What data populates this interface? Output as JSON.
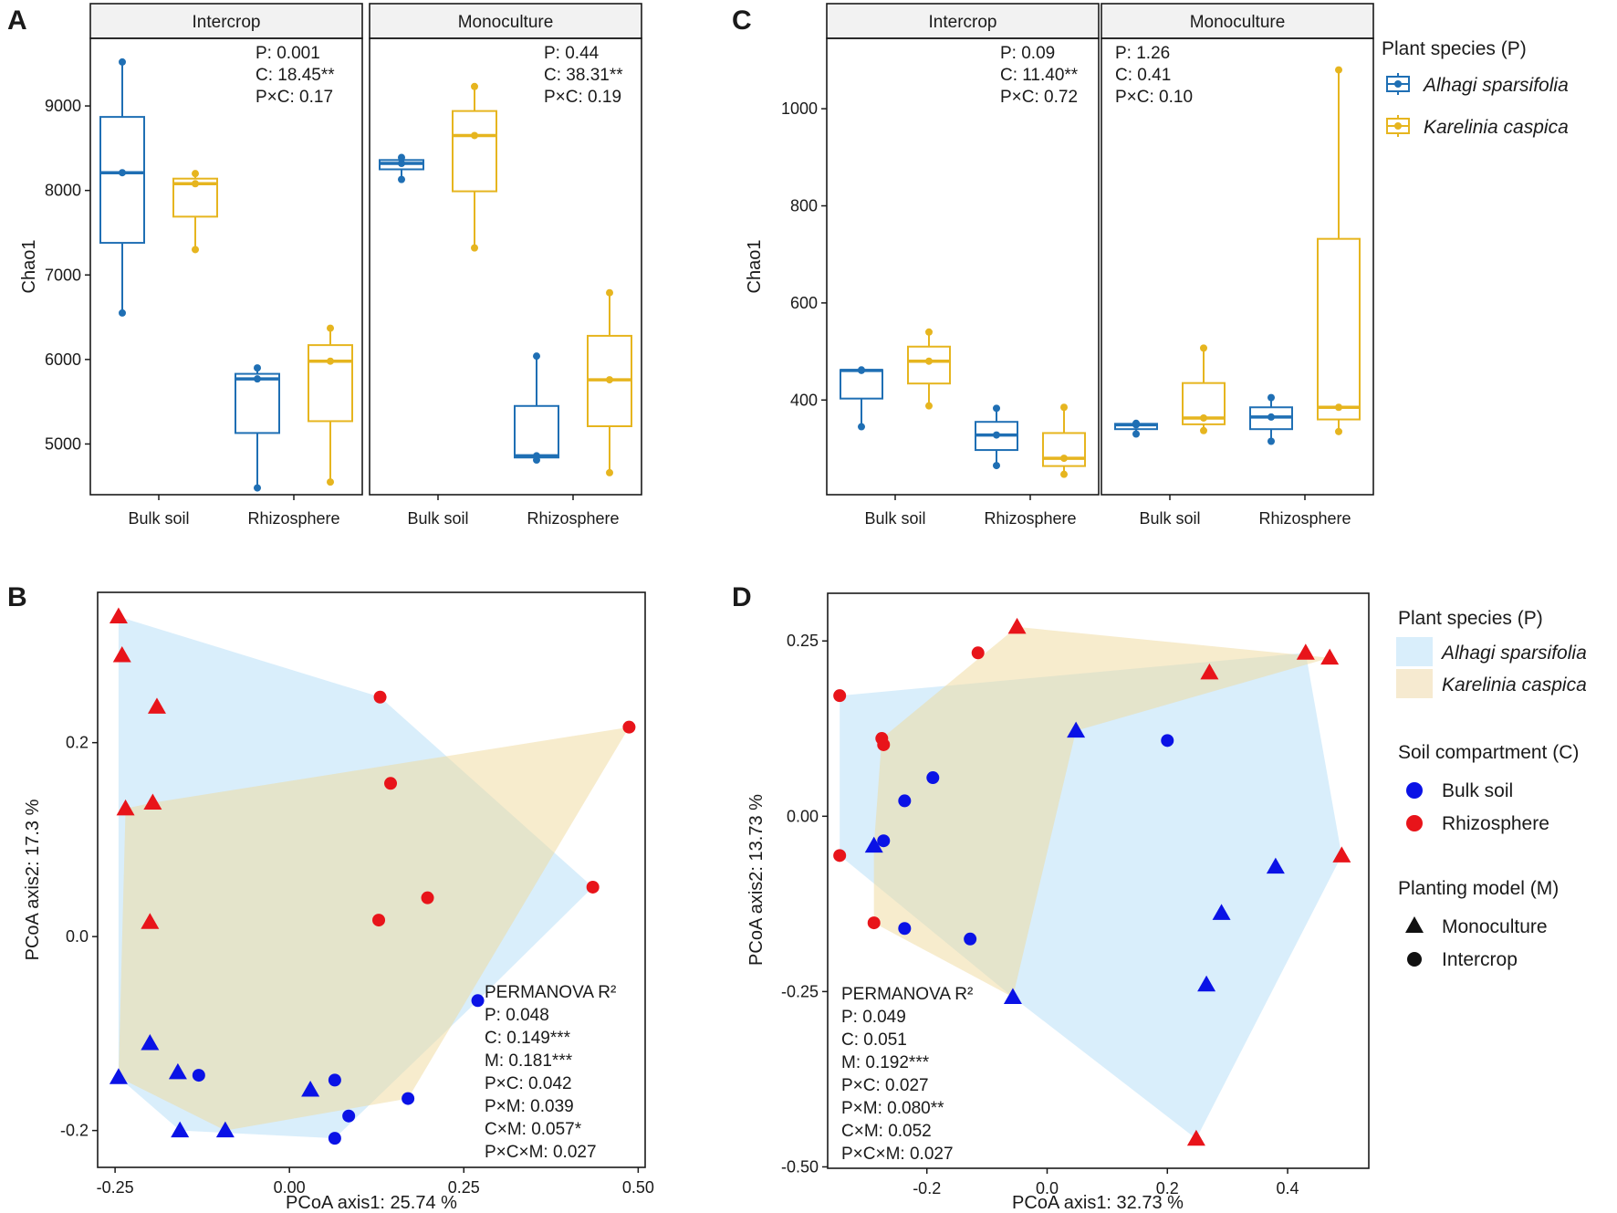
{
  "colors": {
    "alhagi": "#1f6fb4",
    "karelinia": "#e6b51f",
    "bulk": "#0a12e6",
    "rhizo": "#e8141a",
    "alhagi_fill": "#d9eefb",
    "karelinia_fill": "#f6ead0",
    "overlap_fill": "#dfe6cf"
  },
  "legends": {
    "top": {
      "title": "Plant species (P)",
      "items": [
        "Alhagi sparsifolia",
        "Karelinia caspica"
      ]
    },
    "bottom": {
      "species_title": "Plant species (P)",
      "species": [
        "Alhagi sparsifolia",
        "Karelinia caspica"
      ],
      "compartment_title": "Soil compartment (C)",
      "compartments": [
        "Bulk soil",
        "Rhizosphere"
      ],
      "model_title": "Planting model (M)",
      "models": [
        "Monoculture",
        "Intercrop"
      ]
    }
  },
  "chart_data": [
    {
      "panel": "A",
      "type": "box",
      "ylabel": "Chao1",
      "ylim": [
        4400,
        9800
      ],
      "yticks": [
        5000,
        6000,
        7000,
        8000,
        9000
      ],
      "categories": [
        "Bulk soil",
        "Rhizosphere"
      ],
      "facets": [
        {
          "name": "Intercrop",
          "stats": [
            "P: 0.001",
            "C: 18.45**",
            "P×C: 0.17"
          ],
          "boxes": [
            {
              "cat": "Bulk soil",
              "species": "Alhagi sparsifolia",
              "min": 6550,
              "q1": 7380,
              "median": 8210,
              "q3": 8870,
              "max": 9520,
              "points": [
                6550,
                8210,
                9520
              ]
            },
            {
              "cat": "Bulk soil",
              "species": "Karelinia caspica",
              "min": 7300,
              "q1": 7690,
              "median": 8080,
              "q3": 8140,
              "max": 8200,
              "points": [
                7300,
                8080,
                8200
              ]
            },
            {
              "cat": "Rhizosphere",
              "species": "Alhagi sparsifolia",
              "min": 4480,
              "q1": 5130,
              "median": 5770,
              "q3": 5830,
              "max": 5900,
              "points": [
                4480,
                5770,
                5900
              ]
            },
            {
              "cat": "Rhizosphere",
              "species": "Karelinia caspica",
              "min": 4550,
              "q1": 5270,
              "median": 5980,
              "q3": 6170,
              "max": 6370,
              "points": [
                4550,
                5980,
                6370
              ]
            }
          ]
        },
        {
          "name": "Monoculture",
          "stats": [
            "P: 0.44",
            "C: 38.31**",
            "P×C: 0.19"
          ],
          "boxes": [
            {
              "cat": "Bulk soil",
              "species": "Alhagi sparsifolia",
              "min": 8130,
              "q1": 8250,
              "median": 8320,
              "q3": 8360,
              "max": 8390,
              "points": [
                8130,
                8320,
                8390
              ]
            },
            {
              "cat": "Bulk soil",
              "species": "Karelinia caspica",
              "min": 7320,
              "q1": 7990,
              "median": 8650,
              "q3": 8940,
              "max": 9230,
              "points": [
                7320,
                8650,
                9230
              ]
            },
            {
              "cat": "Rhizosphere",
              "species": "Alhagi sparsifolia",
              "min": 4810,
              "q1": 4840,
              "median": 4860,
              "q3": 5450,
              "max": 6040,
              "points": [
                4810,
                4860,
                6040
              ]
            },
            {
              "cat": "Rhizosphere",
              "species": "Karelinia caspica",
              "min": 4660,
              "q1": 5210,
              "median": 5760,
              "q3": 6280,
              "max": 6790,
              "points": [
                4660,
                5760,
                6790
              ]
            }
          ]
        }
      ]
    },
    {
      "panel": "C",
      "type": "box",
      "ylabel": "Chao1",
      "ylim": [
        205,
        1145
      ],
      "yticks": [
        400,
        600,
        800,
        1000
      ],
      "categories": [
        "Bulk soil",
        "Rhizosphere"
      ],
      "facets": [
        {
          "name": "Intercrop",
          "stats": [
            "P: 0.09",
            "C: 11.40**",
            "P×C: 0.72"
          ],
          "boxes": [
            {
              "cat": "Bulk soil",
              "species": "Alhagi sparsifolia",
              "min": 345,
              "q1": 403,
              "median": 461,
              "q3": 462,
              "max": 462,
              "points": [
                345,
                461,
                462
              ]
            },
            {
              "cat": "Bulk soil",
              "species": "Karelinia caspica",
              "min": 388,
              "q1": 434,
              "median": 480,
              "q3": 510,
              "max": 540,
              "points": [
                388,
                480,
                540
              ]
            },
            {
              "cat": "Rhizosphere",
              "species": "Alhagi sparsifolia",
              "min": 265,
              "q1": 297,
              "median": 328,
              "q3": 355,
              "max": 383,
              "points": [
                265,
                328,
                383
              ]
            },
            {
              "cat": "Rhizosphere",
              "species": "Karelinia caspica",
              "min": 247,
              "q1": 264,
              "median": 280,
              "q3": 332,
              "max": 385,
              "points": [
                247,
                280,
                385
              ]
            }
          ]
        },
        {
          "name": "Monoculture",
          "stats": [
            "P: 1.26",
            "C: 0.41",
            "P×C: 0.10"
          ],
          "boxes": [
            {
              "cat": "Bulk soil",
              "species": "Alhagi sparsifolia",
              "min": 330,
              "q1": 340,
              "median": 349,
              "q3": 351,
              "max": 352,
              "points": [
                330,
                349,
                352
              ]
            },
            {
              "cat": "Bulk soil",
              "species": "Karelinia caspica",
              "min": 337,
              "q1": 350,
              "median": 363,
              "q3": 435,
              "max": 507,
              "points": [
                337,
                363,
                507
              ]
            },
            {
              "cat": "Rhizosphere",
              "species": "Alhagi sparsifolia",
              "min": 315,
              "q1": 340,
              "median": 365,
              "q3": 385,
              "max": 405,
              "points": [
                315,
                365,
                405
              ]
            },
            {
              "cat": "Rhizosphere",
              "species": "Karelinia caspica",
              "min": 335,
              "q1": 360,
              "median": 385,
              "q3": 732,
              "max": 1080,
              "points": [
                335,
                385,
                1080
              ]
            }
          ]
        }
      ]
    },
    {
      "panel": "B",
      "type": "scatter",
      "xlabel": "PCoA axis1:  25.74 %",
      "ylabel": "PCoA axis2:  17.3 %",
      "xlim": [
        -0.275,
        0.51
      ],
      "ylim": [
        -0.238,
        0.355
      ],
      "xticks": [
        -0.25,
        0.0,
        0.25,
        0.5
      ],
      "yticks": [
        -0.2,
        0.0,
        0.2
      ],
      "xtick_labels": [
        "-0.25",
        "0.00",
        "0.25",
        "0.50"
      ],
      "ytick_labels": [
        "-0.2",
        "0.0",
        "0.2"
      ],
      "hulls": [
        {
          "species": "Alhagi sparsifolia",
          "polygon": [
            [
              -0.245,
              0.33
            ],
            [
              0.13,
              0.247
            ],
            [
              0.435,
              0.051
            ],
            [
              0.27,
              -0.066
            ],
            [
              0.065,
              -0.208
            ],
            [
              -0.157,
              -0.2
            ],
            [
              -0.245,
              -0.145
            ]
          ]
        },
        {
          "species": "Karelinia caspica",
          "polygon": [
            [
              -0.235,
              0.132
            ],
            [
              -0.196,
              0.138
            ],
            [
              0.487,
              0.216
            ],
            [
              0.17,
              -0.167
            ],
            [
              -0.092,
              -0.2
            ],
            [
              -0.245,
              -0.145
            ]
          ]
        }
      ],
      "points": [
        {
          "x": -0.245,
          "y": 0.33,
          "c": "Rhizosphere",
          "m": "Monoculture"
        },
        {
          "x": -0.24,
          "y": 0.29,
          "c": "Rhizosphere",
          "m": "Monoculture"
        },
        {
          "x": -0.19,
          "y": 0.237,
          "c": "Rhizosphere",
          "m": "Monoculture"
        },
        {
          "x": -0.196,
          "y": 0.138,
          "c": "Rhizosphere",
          "m": "Monoculture"
        },
        {
          "x": -0.235,
          "y": 0.132,
          "c": "Rhizosphere",
          "m": "Monoculture"
        },
        {
          "x": -0.2,
          "y": 0.015,
          "c": "Rhizosphere",
          "m": "Monoculture"
        },
        {
          "x": 0.13,
          "y": 0.247,
          "c": "Rhizosphere",
          "m": "Intercrop"
        },
        {
          "x": 0.145,
          "y": 0.158,
          "c": "Rhizosphere",
          "m": "Intercrop"
        },
        {
          "x": 0.487,
          "y": 0.216,
          "c": "Rhizosphere",
          "m": "Intercrop"
        },
        {
          "x": 0.435,
          "y": 0.051,
          "c": "Rhizosphere",
          "m": "Intercrop"
        },
        {
          "x": 0.198,
          "y": 0.04,
          "c": "Rhizosphere",
          "m": "Intercrop"
        },
        {
          "x": 0.128,
          "y": 0.017,
          "c": "Rhizosphere",
          "m": "Intercrop"
        },
        {
          "x": -0.2,
          "y": -0.11,
          "c": "Bulk soil",
          "m": "Monoculture"
        },
        {
          "x": -0.245,
          "y": -0.145,
          "c": "Bulk soil",
          "m": "Monoculture"
        },
        {
          "x": -0.16,
          "y": -0.14,
          "c": "Bulk soil",
          "m": "Monoculture"
        },
        {
          "x": -0.157,
          "y": -0.2,
          "c": "Bulk soil",
          "m": "Monoculture"
        },
        {
          "x": -0.092,
          "y": -0.2,
          "c": "Bulk soil",
          "m": "Monoculture"
        },
        {
          "x": 0.03,
          "y": -0.158,
          "c": "Bulk soil",
          "m": "Monoculture"
        },
        {
          "x": -0.13,
          "y": -0.143,
          "c": "Bulk soil",
          "m": "Intercrop"
        },
        {
          "x": 0.27,
          "y": -0.066,
          "c": "Bulk soil",
          "m": "Intercrop"
        },
        {
          "x": 0.065,
          "y": -0.148,
          "c": "Bulk soil",
          "m": "Intercrop"
        },
        {
          "x": 0.17,
          "y": -0.167,
          "c": "Bulk soil",
          "m": "Intercrop"
        },
        {
          "x": 0.085,
          "y": -0.185,
          "c": "Bulk soil",
          "m": "Intercrop"
        },
        {
          "x": 0.065,
          "y": -0.208,
          "c": "Bulk soil",
          "m": "Intercrop"
        }
      ],
      "annotation": [
        "PERMANOVA R²",
        "P: 0.048",
        "C: 0.149***",
        "M: 0.181***",
        "P×C: 0.042",
        "P×M: 0.039",
        "C×M: 0.057*",
        "P×C×M: 0.027"
      ]
    },
    {
      "panel": "D",
      "type": "scatter",
      "xlabel": "PCoA axis1:  32.73 %",
      "ylabel": "PCoA axis2:  13.73 %",
      "xlim": [
        -0.365,
        0.535
      ],
      "ylim": [
        -0.502,
        0.318
      ],
      "xticks": [
        -0.2,
        0.0,
        0.2,
        0.4
      ],
      "yticks": [
        -0.5,
        -0.25,
        0.0,
        0.25
      ],
      "xtick_labels": [
        "-0.2",
        "0.0",
        "0.2",
        "0.4"
      ],
      "ytick_labels": [
        "-0.50",
        "-0.25",
        "0.00",
        "0.25"
      ],
      "hulls": [
        {
          "species": "Alhagi sparsifolia",
          "polygon": [
            [
              -0.345,
              0.172
            ],
            [
              0.43,
              0.233
            ],
            [
              0.49,
              -0.056
            ],
            [
              0.248,
              -0.46
            ],
            [
              -0.057,
              -0.258
            ],
            [
              -0.345,
              -0.056
            ]
          ]
        },
        {
          "species": "Karelinia caspica",
          "polygon": [
            [
              -0.05,
              0.27
            ],
            [
              0.47,
              0.226
            ],
            [
              0.048,
              0.122
            ],
            [
              -0.057,
              -0.258
            ],
            [
              -0.288,
              -0.152
            ],
            [
              -0.288,
              -0.042
            ],
            [
              -0.275,
              0.111
            ]
          ]
        }
      ],
      "points": [
        {
          "x": -0.05,
          "y": 0.27,
          "c": "Rhizosphere",
          "m": "Monoculture"
        },
        {
          "x": 0.43,
          "y": 0.233,
          "c": "Rhizosphere",
          "m": "Monoculture"
        },
        {
          "x": 0.47,
          "y": 0.226,
          "c": "Rhizosphere",
          "m": "Monoculture"
        },
        {
          "x": 0.27,
          "y": 0.205,
          "c": "Rhizosphere",
          "m": "Monoculture"
        },
        {
          "x": 0.49,
          "y": -0.056,
          "c": "Rhizosphere",
          "m": "Monoculture"
        },
        {
          "x": 0.248,
          "y": -0.46,
          "c": "Rhizosphere",
          "m": "Monoculture"
        },
        {
          "x": -0.115,
          "y": 0.233,
          "c": "Rhizosphere",
          "m": "Intercrop"
        },
        {
          "x": -0.345,
          "y": 0.172,
          "c": "Rhizosphere",
          "m": "Intercrop"
        },
        {
          "x": -0.275,
          "y": 0.111,
          "c": "Rhizosphere",
          "m": "Intercrop"
        },
        {
          "x": -0.272,
          "y": 0.102,
          "c": "Rhizosphere",
          "m": "Intercrop"
        },
        {
          "x": -0.345,
          "y": -0.056,
          "c": "Rhizosphere",
          "m": "Intercrop"
        },
        {
          "x": -0.288,
          "y": -0.152,
          "c": "Rhizosphere",
          "m": "Intercrop"
        },
        {
          "x": 0.048,
          "y": 0.122,
          "c": "Bulk soil",
          "m": "Monoculture"
        },
        {
          "x": 0.38,
          "y": -0.072,
          "c": "Bulk soil",
          "m": "Monoculture"
        },
        {
          "x": 0.29,
          "y": -0.138,
          "c": "Bulk soil",
          "m": "Monoculture"
        },
        {
          "x": 0.265,
          "y": -0.24,
          "c": "Bulk soil",
          "m": "Monoculture"
        },
        {
          "x": -0.057,
          "y": -0.258,
          "c": "Bulk soil",
          "m": "Monoculture"
        },
        {
          "x": -0.288,
          "y": -0.042,
          "c": "Bulk soil",
          "m": "Monoculture"
        },
        {
          "x": 0.2,
          "y": 0.108,
          "c": "Bulk soil",
          "m": "Intercrop"
        },
        {
          "x": -0.19,
          "y": 0.055,
          "c": "Bulk soil",
          "m": "Intercrop"
        },
        {
          "x": -0.237,
          "y": 0.022,
          "c": "Bulk soil",
          "m": "Intercrop"
        },
        {
          "x": -0.272,
          "y": -0.035,
          "c": "Bulk soil",
          "m": "Intercrop"
        },
        {
          "x": -0.237,
          "y": -0.16,
          "c": "Bulk soil",
          "m": "Intercrop"
        },
        {
          "x": -0.128,
          "y": -0.175,
          "c": "Bulk soil",
          "m": "Intercrop"
        }
      ],
      "annotation": [
        "PERMANOVA R²",
        "P: 0.049",
        "C: 0.051",
        "M: 0.192***",
        "P×C: 0.027",
        "P×M: 0.080**",
        "C×M: 0.052",
        "P×C×M: 0.027"
      ]
    }
  ]
}
